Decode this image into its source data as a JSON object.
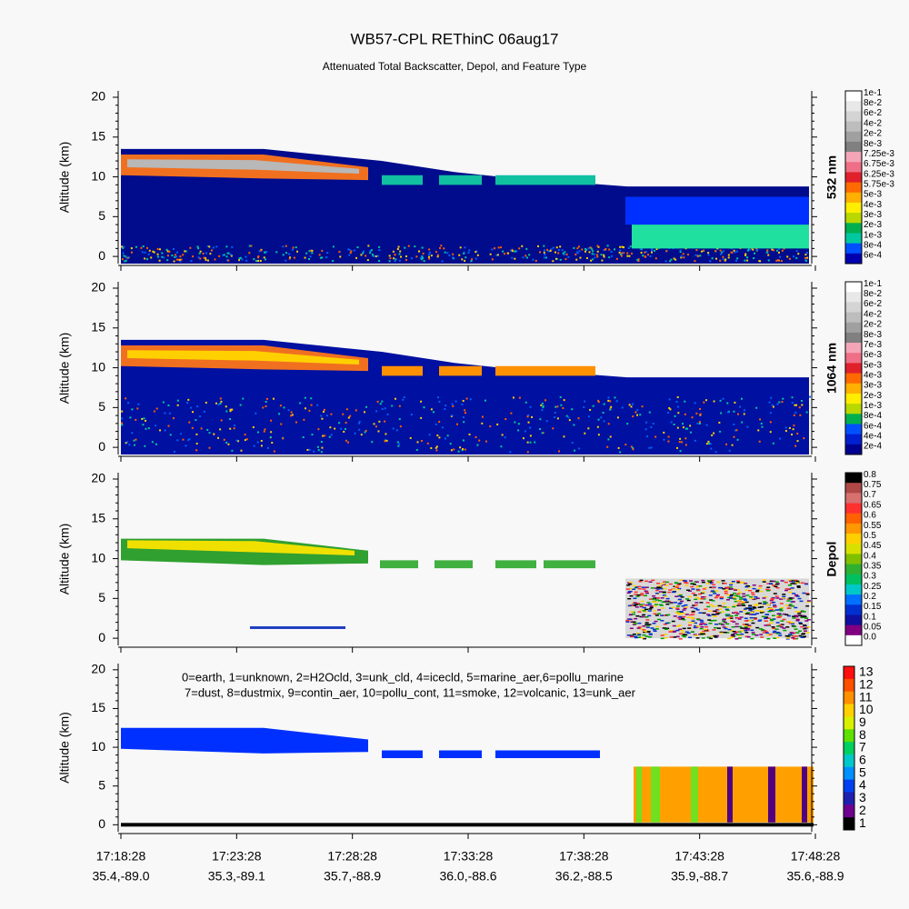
{
  "title": "WB57-CPL REThinC 06aug17",
  "subtitle": "Attenuated Total Backscatter, Depol, and Feature Type",
  "x_axis": {
    "times": [
      "17:18:28",
      "17:23:28",
      "17:28:28",
      "17:33:28",
      "17:38:28",
      "17:43:28",
      "17:48:28"
    ],
    "positions": [
      "35.4,-89.0",
      "35.3,-89.1",
      "35.7,-88.9",
      "36.0,-88.6",
      "36.2,-88.5",
      "35.9,-88.7",
      "35.6,-88.9"
    ]
  },
  "chart_data": [
    {
      "type": "heatmap",
      "y_label": "Altitude (km)",
      "ylim": [
        -0.9,
        20.8
      ],
      "yticks": [
        0,
        5,
        10,
        15,
        20
      ],
      "colorbar_label": "532 nm",
      "colorbar_labels": [
        "1e-1",
        "8e-2",
        "6e-2",
        "4e-2",
        "2e-2",
        "8e-3",
        "7.25e-3",
        "6.75e-3",
        "6.25e-3",
        "5.75e-3",
        "5e-3",
        "4e-3",
        "3e-3",
        "2e-3",
        "1e-3",
        "8e-4",
        "6e-4"
      ],
      "colorbar_colors": [
        "#ffffff",
        "#e8e8e8",
        "#d4d4d4",
        "#bdbdbd",
        "#a0a0a0",
        "#808080",
        "#f4a6b8",
        "#ee6f86",
        "#e0202a",
        "#ff6a00",
        "#ffb000",
        "#ffee00",
        "#b8d800",
        "#00b050",
        "#00c8a0",
        "#0050ff",
        "#0000b0"
      ]
    },
    {
      "type": "heatmap",
      "y_label": "Altitude (km)",
      "ylim": [
        -0.9,
        20.8
      ],
      "yticks": [
        0,
        5,
        10,
        15,
        20
      ],
      "colorbar_label": "1064 nm",
      "colorbar_labels": [
        "1e-1",
        "8e-2",
        "6e-2",
        "4e-2",
        "2e-2",
        "8e-3",
        "7e-3",
        "6e-3",
        "5e-3",
        "4e-3",
        "3e-3",
        "2e-3",
        "1e-3",
        "8e-4",
        "6e-4",
        "4e-4",
        "2e-4"
      ],
      "colorbar_colors": [
        "#ffffff",
        "#e8e8e8",
        "#d4d4d4",
        "#bdbdbd",
        "#a0a0a0",
        "#808080",
        "#f4a6b8",
        "#ee6f86",
        "#e0202a",
        "#ff6a00",
        "#ffb000",
        "#ffee00",
        "#b8d800",
        "#00b050",
        "#0050ff",
        "#0020d0",
        "#000090"
      ]
    },
    {
      "type": "heatmap",
      "y_label": "Altitude (km)",
      "ylim": [
        -0.9,
        20.8
      ],
      "yticks": [
        0,
        5,
        10,
        15,
        20
      ],
      "colorbar_label": "Depol",
      "colorbar_labels": [
        "0.8",
        "0.75",
        "0.7",
        "0.65",
        "0.6",
        "0.55",
        "0.5",
        "0.45",
        "0.4",
        "0.35",
        "0.3",
        "0.25",
        "0.2",
        "0.15",
        "0.1",
        "0.05",
        "0.0"
      ],
      "colorbar_colors": [
        "#000000",
        "#b04848",
        "#d87070",
        "#ff3030",
        "#ff6000",
        "#ff9800",
        "#ffd000",
        "#d8e000",
        "#80c000",
        "#30b030",
        "#00c060",
        "#00c8c8",
        "#0070ff",
        "#0030d0",
        "#1010a0",
        "#800080",
        "#ffffff"
      ]
    },
    {
      "type": "heatmap",
      "y_label": "Altitude (km)",
      "ylim": [
        -0.9,
        20.8
      ],
      "yticks": [
        0,
        5,
        10,
        15,
        20
      ],
      "legend": [
        "0=earth, 1=unknown, 2=H2Ocld, 3=unk_cld, 4=icecld, 5=marine_aer,6=pollu_marine",
        "7=dust, 8=dustmix, 9=contin_aer, 10=pollu_cont, 11=smoke, 12=volcanic, 13=unk_aer"
      ],
      "colorbar_labels": [
        "13",
        "12",
        "11",
        "10",
        "9",
        "8",
        "7",
        "6",
        "5",
        "4",
        "3",
        "2",
        "1"
      ],
      "colorbar_colors": [
        "#ff1010",
        "#ff5000",
        "#ff9000",
        "#ffd000",
        "#d8f000",
        "#60e000",
        "#00d060",
        "#00c8c8",
        "#0090ff",
        "#0040f0",
        "#2020b0",
        "#700090",
        "#000000"
      ]
    }
  ]
}
